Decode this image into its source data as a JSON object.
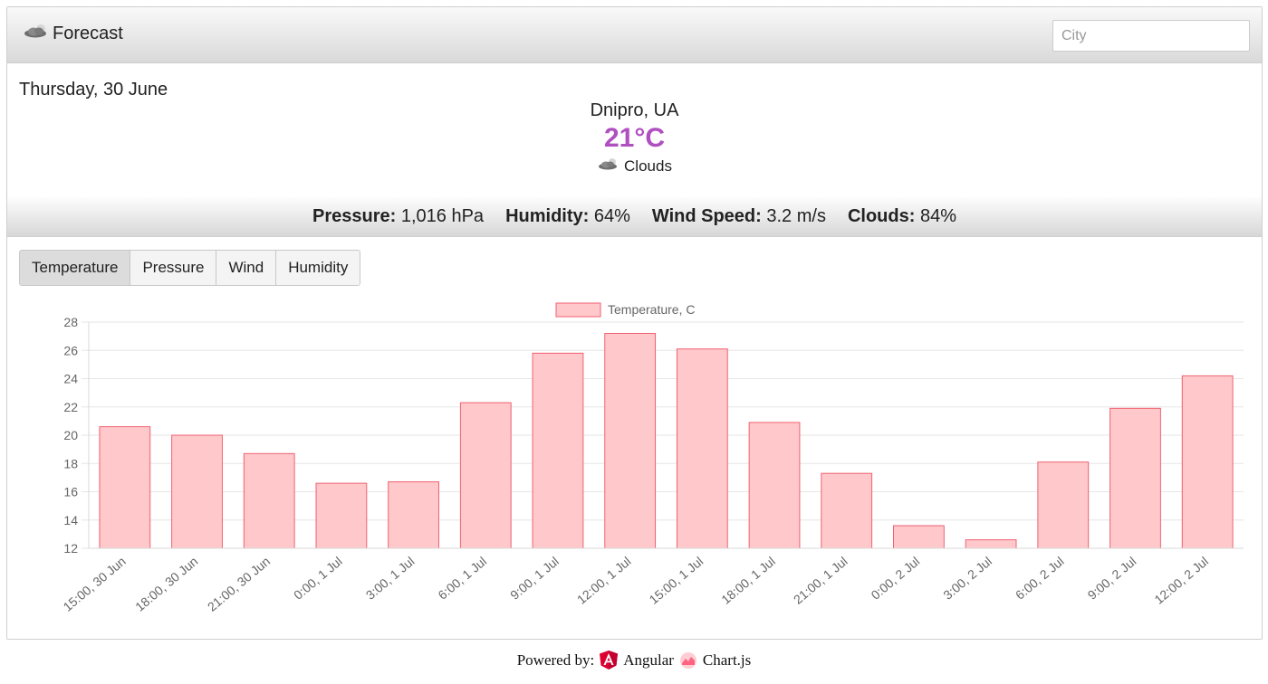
{
  "header": {
    "brand_label": "Forecast",
    "brand_icon": "cloud-sun-icon",
    "city_placeholder": "City"
  },
  "weather": {
    "date": "Thursday, 30 June",
    "location": "Dnipro, UA",
    "temperature": "21°C",
    "condition": "Clouds",
    "condition_icon": "cloud-icon",
    "temperature_color": "#b04fc0"
  },
  "stats": [
    {
      "label": "Pressure:",
      "value": "1,016 hPa"
    },
    {
      "label": "Humidity:",
      "value": "64%"
    },
    {
      "label": "Wind Speed:",
      "value": "3.2 m/s"
    },
    {
      "label": "Clouds:",
      "value": "84%"
    }
  ],
  "tabs": [
    {
      "label": "Temperature",
      "active": true
    },
    {
      "label": "Pressure",
      "active": false
    },
    {
      "label": "Wind",
      "active": false
    },
    {
      "label": "Humidity",
      "active": false
    }
  ],
  "chart_data": {
    "type": "bar",
    "legend": "Temperature, C",
    "legend_position": "top",
    "categories": [
      "15:00, 30 Jun",
      "18:00, 30 Jun",
      "21:00, 30 Jun",
      "0:00, 1 Jul",
      "3:00, 1 Jul",
      "6:00, 1 Jul",
      "9:00, 1 Jul",
      "12:00, 1 Jul",
      "15:00, 1 Jul",
      "18:00, 1 Jul",
      "21:00, 1 Jul",
      "0:00, 2 Jul",
      "3:00, 2 Jul",
      "6:00, 2 Jul",
      "9:00, 2 Jul",
      "12:00, 2 Jul"
    ],
    "series": [
      {
        "name": "Temperature, C",
        "values": [
          20.6,
          20.0,
          18.7,
          16.6,
          16.7,
          22.3,
          25.8,
          27.2,
          26.1,
          20.9,
          17.3,
          13.6,
          12.6,
          18.1,
          21.9,
          24.2
        ]
      }
    ],
    "ylim": [
      12,
      28
    ],
    "yticks": [
      "12",
      "14",
      "16",
      "18",
      "20",
      "22",
      "24",
      "26",
      "28"
    ],
    "grid": true,
    "bar_fill": "#ffc9cb",
    "bar_stroke": "#f06070"
  },
  "footer": {
    "powered_label": "Powered by:",
    "angular_label": "Angular",
    "chartjs_label": "Chart.js"
  }
}
